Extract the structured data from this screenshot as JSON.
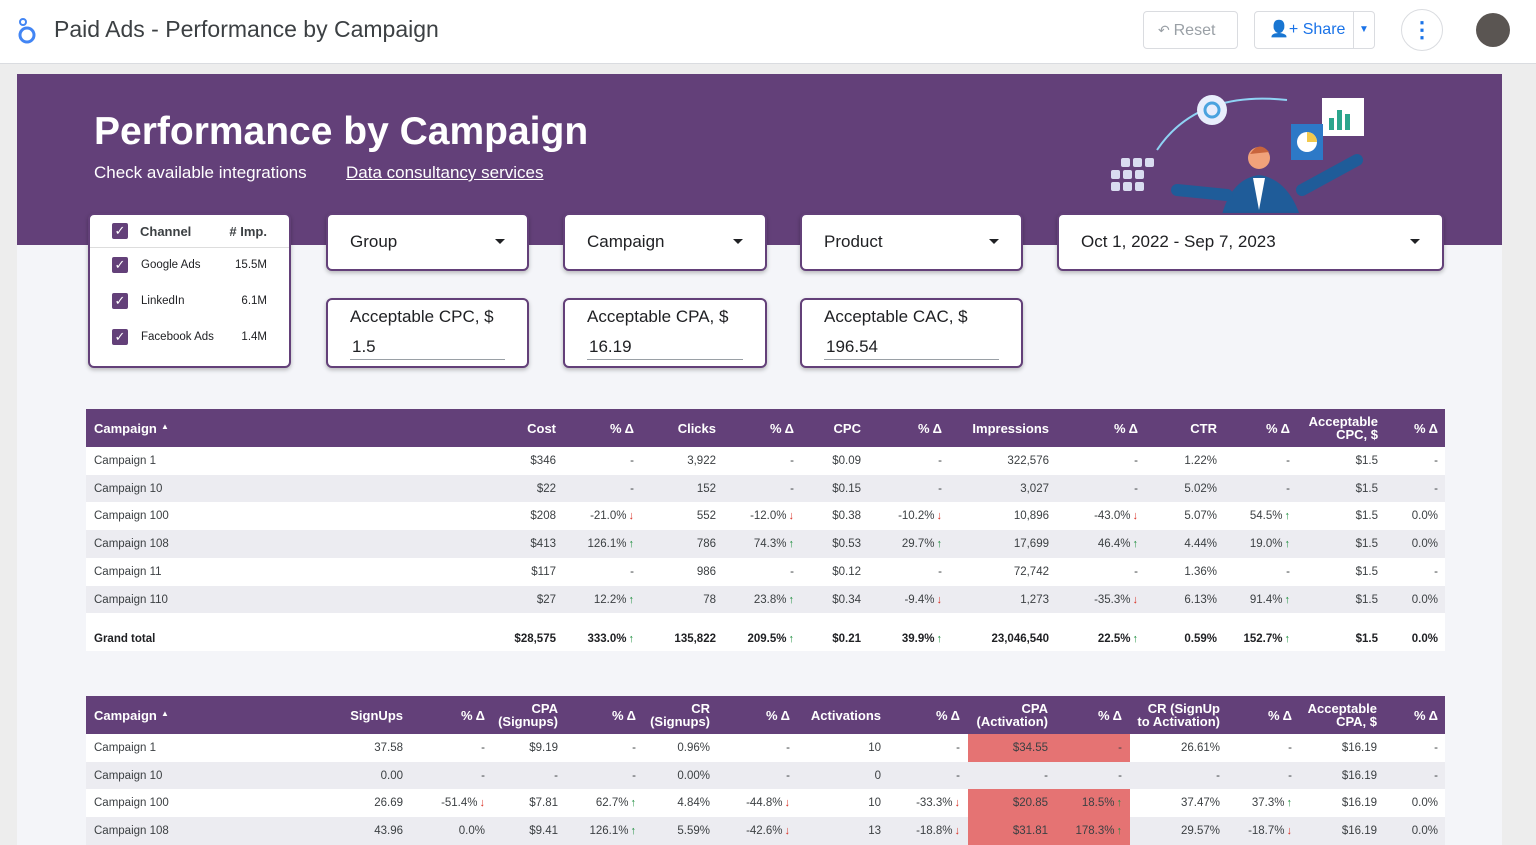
{
  "header": {
    "title": "Paid Ads - Performance by Campaign",
    "reset": "Reset",
    "share": "Share"
  },
  "banner": {
    "title": "Performance by Campaign",
    "link_integrations": "Check available integrations",
    "link_consultancy": "Data consultancy services"
  },
  "channel_filter": {
    "columns": [
      "Channel",
      "# Imp."
    ],
    "rows": [
      [
        "Google Ads",
        "15.5M"
      ],
      [
        "LinkedIn",
        "6.1M"
      ],
      [
        "Facebook Ads",
        "1.4M"
      ]
    ]
  },
  "dropdowns": [
    "Group",
    "Campaign",
    "Product",
    "Oct 1, 2022 - Sep 7, 2023"
  ],
  "inputs": [
    {
      "label": "Acceptable CPC, $",
      "value": "1.5"
    },
    {
      "label": "Acceptable CPA, $",
      "value": "16.19"
    },
    {
      "label": "Acceptable CAC, $",
      "value": "196.54"
    }
  ],
  "tables": [
    {
      "columns": [
        "Campaign",
        "Cost",
        "% Δ",
        "Clicks",
        "% Δ",
        "CPC",
        "% Δ",
        "Impressions",
        "% Δ",
        "CTR",
        "% Δ",
        "Acceptable\nCPC, $",
        "% Δ"
      ],
      "rows": [
        [
          "Campaign 1",
          "$346",
          "-",
          "3,922",
          "-",
          "$0.09",
          "-",
          "322,576",
          "-",
          "1.22%",
          "-",
          "$1.5",
          "-"
        ],
        [
          "Campaign 10",
          "$22",
          "-",
          "152",
          "-",
          "$0.15",
          "-",
          "3,027",
          "-",
          "5.02%",
          "-",
          "$1.5",
          "-"
        ],
        [
          "Campaign 100",
          "$208",
          "-21.0%",
          "552",
          "-12.0%",
          "$0.38",
          "-10.2%",
          "10,896",
          "-43.0%",
          "5.07%",
          "54.5%",
          "$1.5",
          "0.0%"
        ],
        [
          "Campaign 108",
          "$413",
          "126.1%",
          "786",
          "74.3%",
          "$0.53",
          "29.7%",
          "17,699",
          "46.4%",
          "4.44%",
          "19.0%",
          "$1.5",
          "0.0%"
        ],
        [
          "Campaign 11",
          "$117",
          "-",
          "986",
          "-",
          "$0.12",
          "-",
          "72,742",
          "-",
          "1.36%",
          "-",
          "$1.5",
          "-"
        ],
        [
          "Campaign 110",
          "$27",
          "12.2%",
          "78",
          "23.8%",
          "$0.34",
          "-9.4%",
          "1,273",
          "-35.3%",
          "6.13%",
          "91.4%",
          "$1.5",
          "0.0%"
        ]
      ],
      "total": [
        "Grand total",
        "$28,575",
        "333.0%",
        "135,822",
        "209.5%",
        "$0.21",
        "39.9%",
        "23,046,540",
        "22.5%",
        "0.59%",
        "152.7%",
        "$1.5",
        "0.0%"
      ]
    },
    {
      "columns": [
        "Campaign",
        "SignUps",
        "% Δ",
        "CPA\n(Signups)",
        "% Δ",
        "CR\n(Signups)",
        "% Δ",
        "Activations",
        "% Δ",
        "CPA\n(Activation)",
        "% Δ",
        "CR (SignUp\nto Activation)",
        "% Δ",
        "Acceptable\nCPA, $",
        "% Δ"
      ],
      "rows": [
        [
          "Campaign 1",
          "37.58",
          "-",
          "$9.19",
          "-",
          "0.96%",
          "-",
          "10",
          "-",
          "$34.55",
          "-",
          "26.61%",
          "-",
          "$16.19",
          "-"
        ],
        [
          "Campaign 10",
          "0.00",
          "-",
          "-",
          "-",
          "0.00%",
          "-",
          "0",
          "-",
          "-",
          "-",
          "-",
          "-",
          "$16.19",
          "-"
        ],
        [
          "Campaign 100",
          "26.69",
          "-51.4%",
          "$7.81",
          "62.7%",
          "4.84%",
          "-44.8%",
          "10",
          "-33.3%",
          "$20.85",
          "18.5%",
          "37.47%",
          "37.3%",
          "$16.19",
          "0.0%"
        ],
        [
          "Campaign 108",
          "43.96",
          "0.0%",
          "$9.41",
          "126.1%",
          "5.59%",
          "-42.6%",
          "13",
          "-18.8%",
          "$31.81",
          "178.3%",
          "29.57%",
          "-18.7%",
          "$16.19",
          "0.0%"
        ]
      ]
    }
  ]
}
